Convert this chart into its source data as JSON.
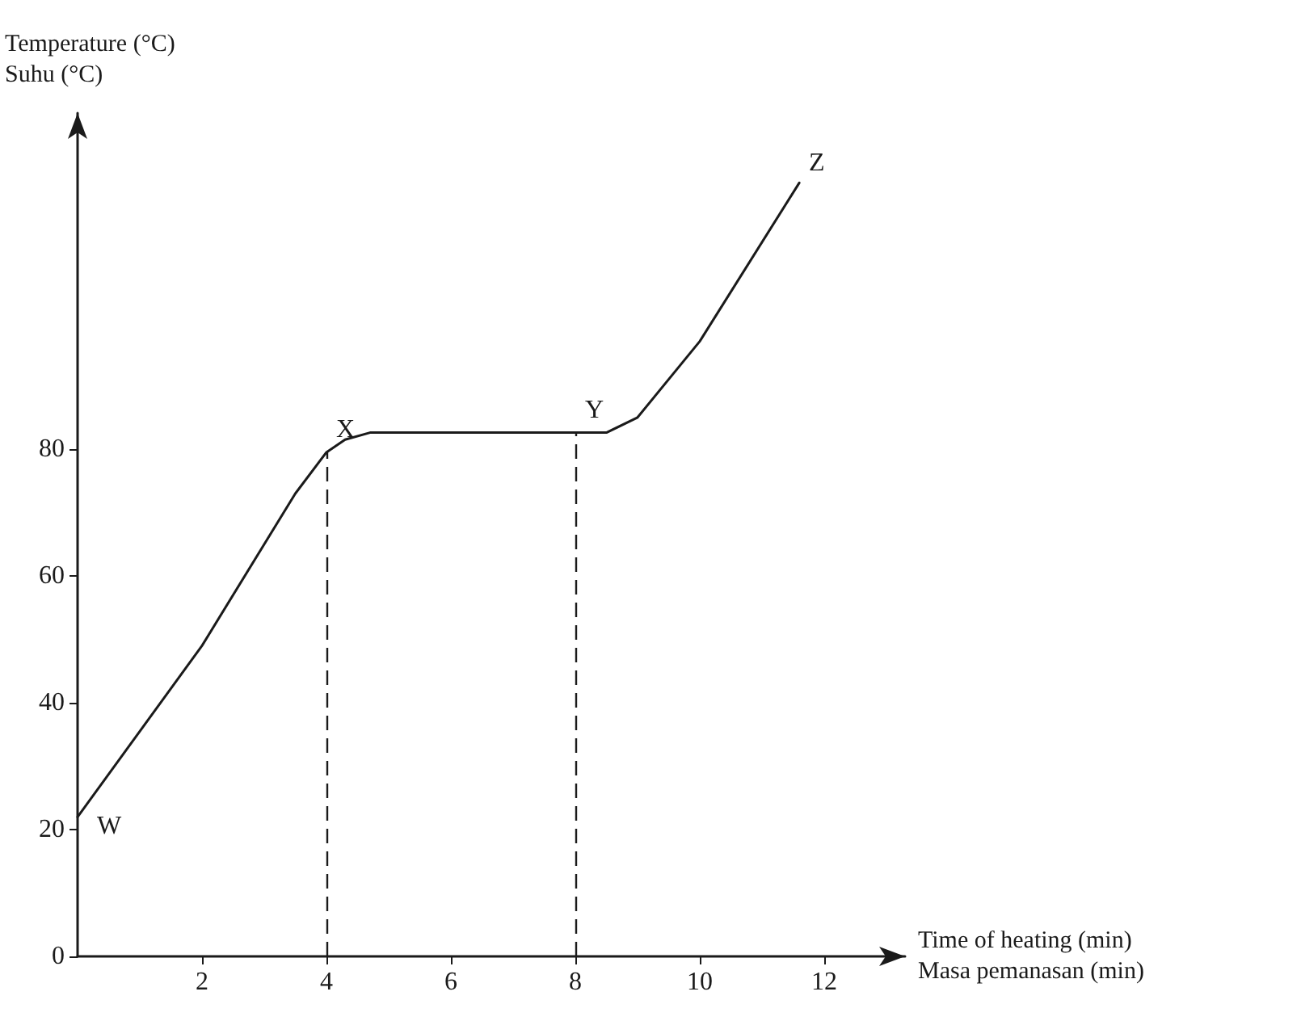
{
  "chart_data": {
    "type": "line",
    "xlabel": "Time of heating (min)\nMasa pemanasan (min)",
    "ylabel": "Temperature (°C)\nSuhu (°C)",
    "x": [
      0,
      2,
      3.5,
      4,
      4.3,
      4.7,
      8.5,
      9,
      10,
      11.6
    ],
    "series": [
      {
        "color": "#1a1a1a",
        "values": [
          22,
          49,
          73,
          79.5,
          81.5,
          82.6,
          82.6,
          85,
          97,
          122
        ]
      }
    ],
    "xlim": [
      0,
      13.3
    ],
    "ylim": [
      0,
      133
    ],
    "xticks": [
      2,
      4,
      6,
      8,
      10,
      12
    ],
    "yticks": [
      0,
      20,
      40,
      60,
      80
    ],
    "ref_lines": [
      {
        "axis": "x",
        "value": 4,
        "line_style": "dashed"
      },
      {
        "axis": "x",
        "value": 8,
        "line_style": "dashed"
      }
    ],
    "annotations": [
      {
        "text": "W",
        "x": 0,
        "y": 22
      },
      {
        "text": "X",
        "x": 4,
        "y": 80
      },
      {
        "text": "Y",
        "x": 8,
        "y": 83
      },
      {
        "text": "Z",
        "x": 11.6,
        "y": 122
      }
    ],
    "grid": false,
    "marker": "none",
    "line_style": "solid"
  }
}
